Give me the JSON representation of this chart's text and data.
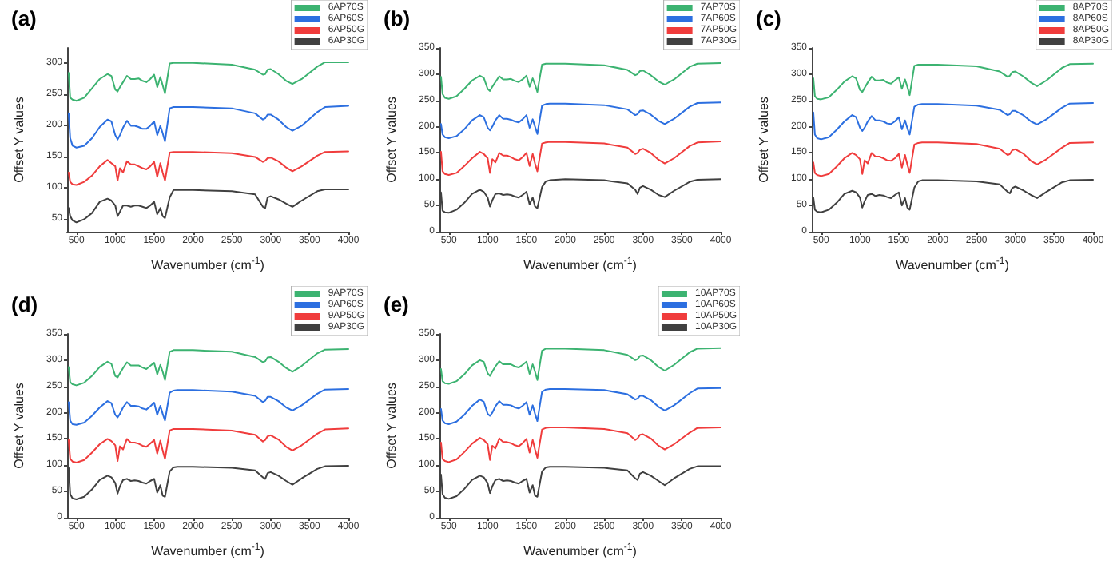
{
  "chart_data": [
    {
      "type": "line",
      "title": "(a)",
      "xlabel": "Wavenumber (cm$^{-1}$)",
      "ylabel": "Offset Y values",
      "xlim": [
        380,
        4000
      ],
      "xticks": [
        500,
        1000,
        1500,
        2000,
        2500,
        3000,
        3500,
        4000
      ],
      "ylim": [
        30,
        325
      ],
      "yticks": [
        50,
        100,
        150,
        200,
        250,
        300
      ],
      "legend": "top right",
      "line_style": "solid",
      "x": [
        400,
        420,
        450,
        500,
        600,
        700,
        800,
        900,
        950,
        1000,
        1030,
        1060,
        1100,
        1150,
        1200,
        1250,
        1300,
        1350,
        1400,
        1450,
        1500,
        1540,
        1580,
        1610,
        1640,
        1700,
        1750,
        1800,
        2000,
        2500,
        2800,
        2900,
        2930,
        2960,
        3000,
        3100,
        3200,
        3280,
        3400,
        3600,
        3700,
        4000
      ],
      "series": [
        {
          "name": "6AP70S",
          "color": "#3cb371",
          "values": [
            285,
            245,
            242,
            240,
            245,
            260,
            275,
            283,
            280,
            258,
            255,
            262,
            270,
            280,
            275,
            275,
            276,
            272,
            270,
            275,
            282,
            262,
            278,
            265,
            252,
            300,
            301,
            301,
            301,
            298,
            290,
            282,
            283,
            290,
            291,
            283,
            272,
            267,
            275,
            295,
            302,
            302
          ]
        },
        {
          "name": "6AP60S",
          "color": "#2c6fe0",
          "values": [
            220,
            180,
            168,
            165,
            168,
            180,
            198,
            210,
            207,
            185,
            178,
            185,
            197,
            208,
            200,
            200,
            198,
            195,
            195,
            200,
            207,
            185,
            200,
            188,
            175,
            228,
            230,
            230,
            230,
            228,
            220,
            210,
            212,
            218,
            218,
            210,
            198,
            192,
            200,
            222,
            230,
            232
          ]
        },
        {
          "name": "6AP50G",
          "color": "#f03c3c",
          "values": [
            125,
            110,
            106,
            105,
            110,
            120,
            135,
            145,
            140,
            135,
            112,
            132,
            125,
            143,
            138,
            138,
            135,
            132,
            130,
            135,
            142,
            118,
            140,
            125,
            112,
            157,
            158,
            158,
            158,
            156,
            150,
            142,
            144,
            148,
            149,
            143,
            133,
            127,
            135,
            152,
            158,
            159
          ]
        },
        {
          "name": "6AP30G",
          "color": "#404040",
          "values": [
            68,
            55,
            48,
            45,
            50,
            60,
            78,
            83,
            80,
            72,
            55,
            62,
            72,
            72,
            70,
            72,
            72,
            70,
            68,
            72,
            78,
            58,
            68,
            55,
            52,
            85,
            97,
            97,
            97,
            95,
            90,
            70,
            68,
            85,
            87,
            82,
            75,
            70,
            80,
            95,
            98,
            98
          ]
        }
      ]
    },
    {
      "type": "line",
      "title": "(b)",
      "xlabel": "Wavenumber (cm$^{-1}$)",
      "ylabel": "Offset Y values",
      "xlim": [
        380,
        4000
      ],
      "xticks": [
        500,
        1000,
        1500,
        2000,
        2500,
        3000,
        3500,
        4000
      ],
      "ylim": [
        0,
        350
      ],
      "yticks": [
        0,
        50,
        100,
        150,
        200,
        250,
        300,
        350
      ],
      "legend": "top right",
      "line_style": "solid",
      "x": [
        400,
        420,
        450,
        500,
        600,
        700,
        800,
        900,
        950,
        1000,
        1030,
        1060,
        1100,
        1150,
        1200,
        1250,
        1300,
        1350,
        1400,
        1450,
        1500,
        1540,
        1580,
        1610,
        1640,
        1700,
        1750,
        1800,
        2000,
        2500,
        2800,
        2900,
        2930,
        2960,
        3000,
        3100,
        3200,
        3280,
        3400,
        3600,
        3700,
        4000
      ],
      "series": [
        {
          "name": "7AP70S",
          "color": "#3cb371",
          "values": [
            295,
            262,
            255,
            253,
            258,
            272,
            288,
            297,
            293,
            272,
            268,
            276,
            285,
            296,
            290,
            290,
            291,
            287,
            285,
            290,
            297,
            276,
            292,
            280,
            266,
            318,
            320,
            320,
            320,
            317,
            308,
            298,
            300,
            306,
            307,
            298,
            286,
            280,
            290,
            314,
            320,
            321
          ]
        },
        {
          "name": "7AP60S",
          "color": "#2c6fe0",
          "values": [
            205,
            185,
            180,
            178,
            182,
            195,
            212,
            222,
            218,
            198,
            193,
            200,
            212,
            222,
            215,
            215,
            213,
            210,
            208,
            214,
            222,
            198,
            214,
            200,
            186,
            240,
            243,
            244,
            244,
            241,
            233,
            222,
            224,
            230,
            231,
            223,
            211,
            205,
            215,
            238,
            245,
            246
          ]
        },
        {
          "name": "7AP50G",
          "color": "#f03c3c",
          "values": [
            152,
            115,
            110,
            108,
            112,
            125,
            140,
            152,
            148,
            140,
            112,
            138,
            132,
            150,
            145,
            145,
            142,
            138,
            136,
            142,
            150,
            125,
            148,
            130,
            115,
            168,
            170,
            171,
            171,
            168,
            160,
            148,
            150,
            156,
            158,
            150,
            137,
            130,
            140,
            163,
            170,
            172
          ]
        },
        {
          "name": "7AP30G",
          "color": "#404040",
          "values": [
            75,
            40,
            37,
            36,
            42,
            55,
            72,
            80,
            76,
            65,
            48,
            60,
            72,
            73,
            70,
            71,
            70,
            67,
            65,
            70,
            76,
            52,
            65,
            48,
            45,
            85,
            96,
            98,
            100,
            98,
            92,
            80,
            72,
            84,
            87,
            80,
            70,
            66,
            78,
            95,
            99,
            100
          ]
        }
      ]
    },
    {
      "type": "line",
      "title": "(c)",
      "xlabel": "Wavenumber (cm$^{-1}$)",
      "ylabel": "Offset Y values",
      "xlim": [
        380,
        4000
      ],
      "xticks": [
        500,
        1000,
        1500,
        2000,
        2500,
        3000,
        3500,
        4000
      ],
      "ylim": [
        0,
        350
      ],
      "yticks": [
        0,
        50,
        100,
        150,
        200,
        250,
        300,
        350
      ],
      "legend": "top right",
      "line_style": "solid",
      "x": [
        400,
        420,
        450,
        500,
        600,
        700,
        800,
        900,
        950,
        1000,
        1030,
        1060,
        1100,
        1150,
        1200,
        1250,
        1300,
        1350,
        1400,
        1450,
        1500,
        1540,
        1580,
        1610,
        1640,
        1700,
        1750,
        1800,
        2000,
        2500,
        2800,
        2900,
        2930,
        2960,
        3000,
        3100,
        3200,
        3280,
        3400,
        3600,
        3700,
        4000
      ],
      "series": [
        {
          "name": "8AP70S",
          "color": "#3cb371",
          "values": [
            292,
            258,
            253,
            252,
            256,
            270,
            286,
            296,
            292,
            270,
            266,
            274,
            284,
            295,
            288,
            288,
            289,
            284,
            282,
            288,
            294,
            272,
            290,
            276,
            260,
            316,
            318,
            318,
            318,
            315,
            305,
            295,
            297,
            304,
            305,
            296,
            284,
            277,
            288,
            312,
            319,
            320
          ]
        },
        {
          "name": "8AP60S",
          "color": "#2c6fe0",
          "values": [
            227,
            185,
            178,
            176,
            180,
            194,
            210,
            222,
            218,
            198,
            192,
            198,
            210,
            220,
            212,
            212,
            210,
            206,
            205,
            210,
            218,
            195,
            212,
            197,
            185,
            238,
            242,
            243,
            243,
            240,
            232,
            222,
            224,
            230,
            230,
            222,
            210,
            204,
            214,
            236,
            244,
            245
          ]
        },
        {
          "name": "8AP50G",
          "color": "#f03c3c",
          "values": [
            132,
            112,
            108,
            106,
            110,
            124,
            140,
            150,
            146,
            138,
            110,
            136,
            130,
            150,
            143,
            143,
            140,
            136,
            135,
            140,
            148,
            122,
            146,
            128,
            112,
            166,
            169,
            170,
            170,
            167,
            158,
            146,
            148,
            155,
            157,
            149,
            135,
            128,
            138,
            160,
            169,
            170
          ]
        },
        {
          "name": "8AP30G",
          "color": "#404040",
          "values": [
            65,
            42,
            38,
            37,
            42,
            55,
            72,
            78,
            75,
            65,
            46,
            58,
            70,
            72,
            68,
            70,
            69,
            66,
            64,
            70,
            75,
            50,
            64,
            46,
            42,
            84,
            96,
            98,
            98,
            96,
            90,
            76,
            73,
            83,
            86,
            79,
            70,
            64,
            76,
            94,
            98,
            99
          ]
        }
      ]
    },
    {
      "type": "line",
      "title": "(d)",
      "xlabel": "Wavenumber (cm$^{-1}$)",
      "ylabel": "Offset Y values",
      "xlim": [
        380,
        4000
      ],
      "xticks": [
        500,
        1000,
        1500,
        2000,
        2500,
        3000,
        3500,
        4000
      ],
      "ylim": [
        0,
        350
      ],
      "yticks": [
        0,
        50,
        100,
        150,
        200,
        250,
        300,
        350
      ],
      "legend": "top right",
      "line_style": "solid",
      "x": [
        400,
        420,
        450,
        500,
        600,
        700,
        800,
        900,
        950,
        1000,
        1030,
        1060,
        1100,
        1150,
        1200,
        1250,
        1300,
        1350,
        1400,
        1450,
        1500,
        1540,
        1580,
        1610,
        1640,
        1700,
        1750,
        1800,
        2000,
        2500,
        2800,
        2900,
        2930,
        2960,
        3000,
        3100,
        3200,
        3280,
        3400,
        3600,
        3700,
        4000
      ],
      "series": [
        {
          "name": "9AP70S",
          "color": "#3cb371",
          "values": [
            287,
            258,
            254,
            252,
            257,
            270,
            287,
            297,
            293,
            270,
            267,
            275,
            285,
            296,
            290,
            290,
            290,
            286,
            283,
            289,
            295,
            273,
            291,
            278,
            262,
            316,
            319,
            319,
            319,
            316,
            306,
            296,
            298,
            305,
            306,
            297,
            285,
            278,
            289,
            313,
            320,
            321
          ]
        },
        {
          "name": "9AP60S",
          "color": "#2c6fe0",
          "values": [
            220,
            185,
            178,
            177,
            181,
            194,
            210,
            222,
            218,
            196,
            191,
            198,
            210,
            220,
            213,
            213,
            212,
            208,
            206,
            212,
            219,
            196,
            213,
            198,
            185,
            238,
            242,
            243,
            243,
            240,
            232,
            220,
            223,
            230,
            230,
            222,
            210,
            204,
            214,
            236,
            244,
            245
          ]
        },
        {
          "name": "9AP50G",
          "color": "#f03c3c",
          "values": [
            148,
            112,
            107,
            105,
            110,
            124,
            140,
            150,
            146,
            138,
            108,
            136,
            130,
            150,
            143,
            143,
            141,
            137,
            135,
            141,
            148,
            122,
            147,
            128,
            112,
            166,
            169,
            169,
            169,
            166,
            158,
            145,
            148,
            155,
            157,
            149,
            135,
            128,
            138,
            160,
            168,
            170
          ]
        },
        {
          "name": "9AP30G",
          "color": "#404040",
          "values": [
            95,
            45,
            37,
            35,
            40,
            54,
            72,
            80,
            77,
            66,
            46,
            60,
            72,
            74,
            70,
            71,
            70,
            67,
            65,
            70,
            74,
            48,
            62,
            42,
            40,
            88,
            96,
            97,
            97,
            95,
            90,
            77,
            74,
            85,
            87,
            80,
            70,
            63,
            75,
            93,
            98,
            99
          ]
        }
      ]
    },
    {
      "type": "line",
      "title": "(e)",
      "xlabel": "Wavenumber (cm$^{-1}$)",
      "ylabel": "Offset Y values",
      "xlim": [
        380,
        4000
      ],
      "xticks": [
        500,
        1000,
        1500,
        2000,
        2500,
        3000,
        3500,
        4000
      ],
      "ylim": [
        0,
        350
      ],
      "yticks": [
        0,
        50,
        100,
        150,
        200,
        250,
        300,
        350
      ],
      "legend": "top right",
      "line_style": "solid",
      "x": [
        400,
        420,
        450,
        500,
        600,
        700,
        800,
        900,
        950,
        1000,
        1030,
        1060,
        1100,
        1150,
        1200,
        1250,
        1300,
        1350,
        1400,
        1450,
        1500,
        1540,
        1580,
        1610,
        1640,
        1700,
        1750,
        1800,
        2000,
        2500,
        2800,
        2900,
        2930,
        2960,
        3000,
        3100,
        3200,
        3280,
        3400,
        3600,
        3700,
        4000
      ],
      "series": [
        {
          "name": "10AP70S",
          "color": "#3cb371",
          "values": [
            283,
            260,
            256,
            255,
            260,
            273,
            290,
            300,
            297,
            275,
            270,
            278,
            288,
            298,
            292,
            292,
            292,
            288,
            286,
            291,
            297,
            274,
            292,
            278,
            262,
            318,
            322,
            322,
            322,
            319,
            310,
            300,
            302,
            308,
            309,
            300,
            287,
            280,
            291,
            315,
            322,
            323
          ]
        },
        {
          "name": "10AP60S",
          "color": "#2c6fe0",
          "values": [
            207,
            185,
            180,
            178,
            183,
            196,
            213,
            225,
            221,
            198,
            194,
            200,
            212,
            222,
            215,
            215,
            214,
            210,
            208,
            213,
            220,
            196,
            214,
            198,
            184,
            240,
            244,
            245,
            245,
            243,
            235,
            225,
            227,
            232,
            232,
            224,
            211,
            204,
            214,
            237,
            246,
            247
          ]
        },
        {
          "name": "10AP50G",
          "color": "#f03c3c",
          "values": [
            143,
            112,
            108,
            106,
            111,
            125,
            141,
            152,
            148,
            140,
            110,
            137,
            132,
            151,
            144,
            144,
            142,
            138,
            136,
            142,
            150,
            124,
            148,
            130,
            114,
            168,
            171,
            172,
            172,
            169,
            161,
            148,
            151,
            158,
            159,
            151,
            137,
            130,
            140,
            162,
            171,
            172
          ]
        },
        {
          "name": "10AP30G",
          "color": "#404040",
          "values": [
            82,
            45,
            38,
            36,
            41,
            55,
            72,
            80,
            77,
            66,
            47,
            60,
            72,
            74,
            70,
            71,
            70,
            67,
            65,
            70,
            74,
            48,
            62,
            42,
            40,
            88,
            96,
            97,
            97,
            95,
            90,
            75,
            72,
            84,
            87,
            80,
            70,
            62,
            75,
            93,
            98,
            98
          ]
        }
      ]
    }
  ]
}
